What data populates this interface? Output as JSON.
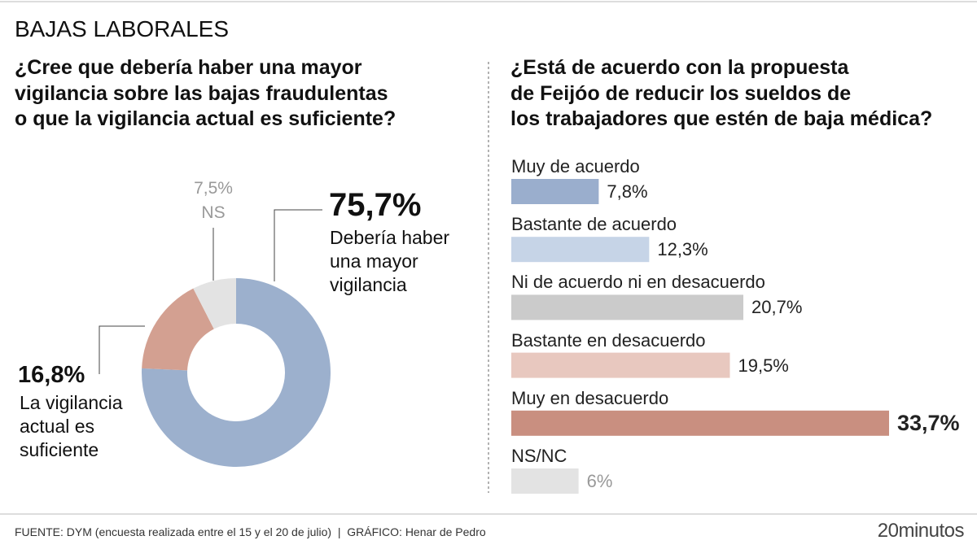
{
  "title": "BAJAS LABORALES",
  "chart_data": [
    {
      "type": "donut",
      "title": [
        "¿Cree que debería haber una mayor",
        "vigilancia sobre las bajas fraudulentas",
        "o que la vigilancia actual es suficiente?"
      ],
      "categories": [
        "Debería haber una mayor vigilancia",
        "La vigilancia actual es suficiente",
        "NS"
      ],
      "values": [
        75.7,
        16.8,
        7.5
      ],
      "value_labels": [
        "75,7%",
        "16,8%",
        "7,5%"
      ],
      "colors": [
        "#9cb0cd",
        "#d3a091",
        "#e3e3e3"
      ]
    },
    {
      "type": "bar",
      "title": [
        "¿Está de acuerdo con la propuesta",
        "de Feijóo de reducir los sueldos de",
        "los trabajadores que estén de baja médica?"
      ],
      "categories": [
        "Muy de acuerdo",
        "Bastante de acuerdo",
        "Ni de acuerdo ni en desacuerdo",
        "Bastante en desacuerdo",
        "Muy en desacuerdo",
        "NS/NC"
      ],
      "values": [
        7.8,
        12.3,
        20.7,
        19.5,
        33.7,
        6
      ],
      "value_labels": [
        "7,8%",
        "12,3%",
        "20,7%",
        "19,5%",
        "33,7%",
        "6%"
      ],
      "colors": [
        "#9aaecd",
        "#c6d4e7",
        "#cbcbcb",
        "#e8c8bf",
        "#c98f80",
        "#e3e3e3"
      ]
    }
  ],
  "footer": {
    "source": "FUENTE: DYM (encuesta realizada entre el 15 y el 20 de julio)  |  GRÁFICO: Henar de Pedro",
    "logo": "20minutos"
  }
}
